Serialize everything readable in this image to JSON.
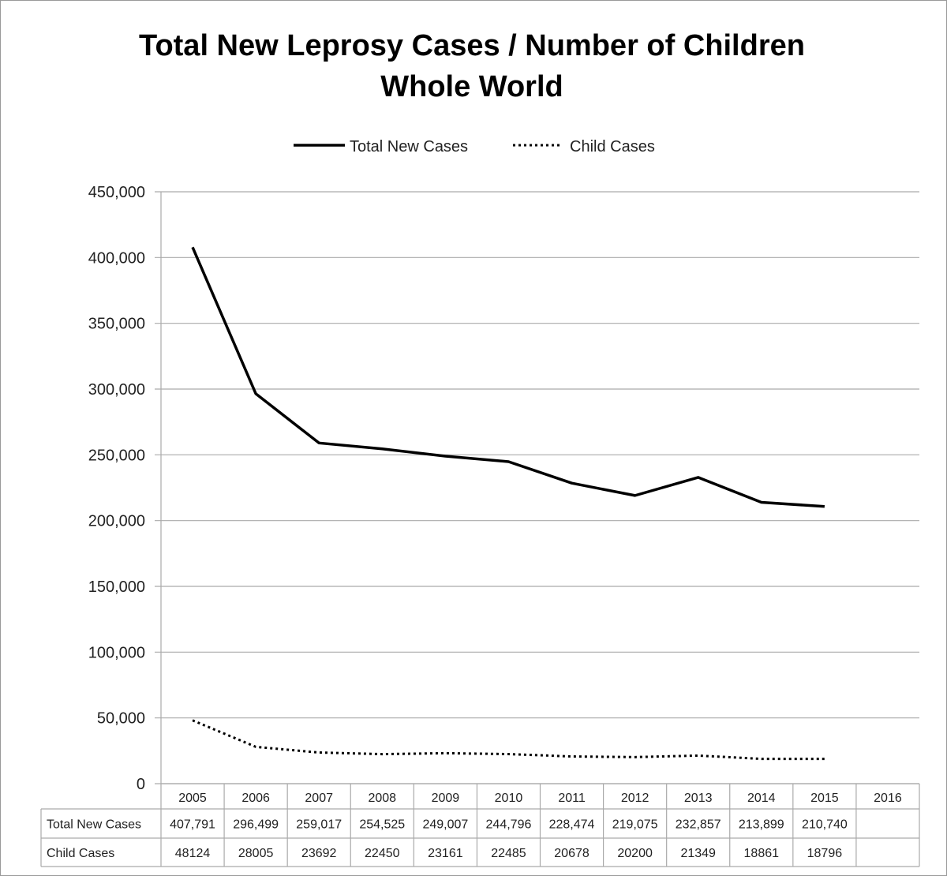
{
  "chart_data": {
    "type": "line",
    "title": [
      "Total New Leprosy Cases / Number of Children",
      "Whole World"
    ],
    "categories": [
      "2005",
      "2006",
      "2007",
      "2008",
      "2009",
      "2010",
      "2011",
      "2012",
      "2013",
      "2014",
      "2015",
      "2016"
    ],
    "series": [
      {
        "name": "Total New Cases",
        "style": "solid",
        "color": "#000000",
        "values": [
          407791,
          296499,
          259017,
          254525,
          249007,
          244796,
          228474,
          219075,
          232857,
          213899,
          210740,
          null
        ],
        "labels": [
          "407,791",
          "296,499",
          "259,017",
          "254,525",
          "249,007",
          "244,796",
          "228,474",
          "219,075",
          "232,857",
          "213,899",
          "210,740",
          ""
        ]
      },
      {
        "name": "Child Cases",
        "style": "dotted",
        "color": "#000000",
        "values": [
          48124,
          28005,
          23692,
          22450,
          23161,
          22485,
          20678,
          20200,
          21349,
          18861,
          18796,
          null
        ],
        "labels": [
          "48124",
          "28005",
          "23692",
          "22450",
          "23161",
          "22485",
          "20678",
          "20200",
          "21349",
          "18861",
          "18796",
          ""
        ]
      }
    ],
    "ylim": [
      0,
      450000
    ],
    "yticks": [
      0,
      50000,
      100000,
      150000,
      200000,
      250000,
      300000,
      350000,
      400000,
      450000
    ],
    "ytick_labels": [
      "0",
      "50,000",
      "100,000",
      "150,000",
      "200,000",
      "250,000",
      "300,000",
      "350,000",
      "400,000",
      "450,000"
    ],
    "grid": true,
    "legend_position": "top",
    "data_table": true
  }
}
